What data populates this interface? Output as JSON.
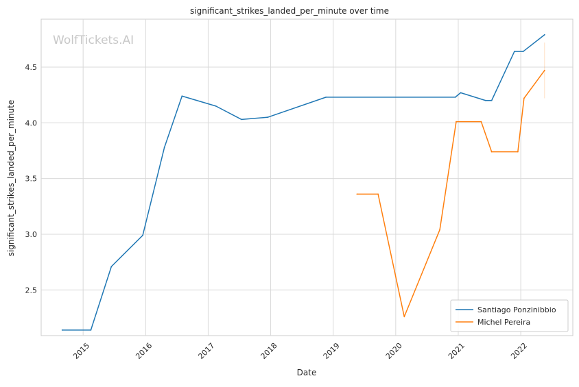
{
  "chart_data": {
    "type": "line",
    "title": "significant_strikes_landed_per_minute over time",
    "xlabel": "Date",
    "ylabel": "significant_strikes_landed_per_minute",
    "watermark": "WolfTickets.AI",
    "x_ticks": [
      "2015",
      "2016",
      "2017",
      "2018",
      "2019",
      "2020",
      "2021",
      "2022"
    ],
    "y_ticks": [
      "2.5",
      "3.0",
      "3.5",
      "4.0",
      "4.5"
    ],
    "ylim": [
      2.09,
      4.93
    ],
    "xlim": [
      "2014-05-01",
      "2022-11-01"
    ],
    "grid": true,
    "legend_position": "lower-right",
    "series": [
      {
        "name": "Santiago Ponzinibbio",
        "color": "#1f77b4",
        "points": [
          [
            "2014-09-01",
            2.14
          ],
          [
            "2015-02-15",
            2.14
          ],
          [
            "2015-06-15",
            2.71
          ],
          [
            "2015-12-15",
            2.99
          ],
          [
            "2016-04-20",
            3.78
          ],
          [
            "2016-08-01",
            4.24
          ],
          [
            "2017-02-15",
            4.15
          ],
          [
            "2017-07-15",
            4.03
          ],
          [
            "2017-12-15",
            4.05
          ],
          [
            "2018-11-20",
            4.23
          ],
          [
            "2020-12-15",
            4.23
          ],
          [
            "2021-01-15",
            4.27
          ],
          [
            "2021-06-10",
            4.2
          ],
          [
            "2021-07-15",
            4.2
          ],
          [
            "2021-11-25",
            4.64
          ],
          [
            "2022-01-15",
            4.64
          ],
          [
            "2022-05-20",
            4.79
          ]
        ]
      },
      {
        "name": "Michel Pereira",
        "color": "#ff7f0e",
        "points": [
          [
            "2019-05-20",
            3.36
          ],
          [
            "2019-09-20",
            3.36
          ],
          [
            "2020-02-20",
            2.26
          ],
          [
            "2020-09-15",
            3.04
          ],
          [
            "2020-12-20",
            4.01
          ],
          [
            "2021-05-15",
            4.01
          ],
          [
            "2021-07-15",
            3.74
          ],
          [
            "2021-12-15",
            3.74
          ],
          [
            "2022-01-20",
            4.22
          ],
          [
            "2022-05-20",
            4.47
          ]
        ],
        "error_bar": {
          "x": "2022-05-20",
          "low": 4.22,
          "high": 4.72
        }
      }
    ]
  }
}
